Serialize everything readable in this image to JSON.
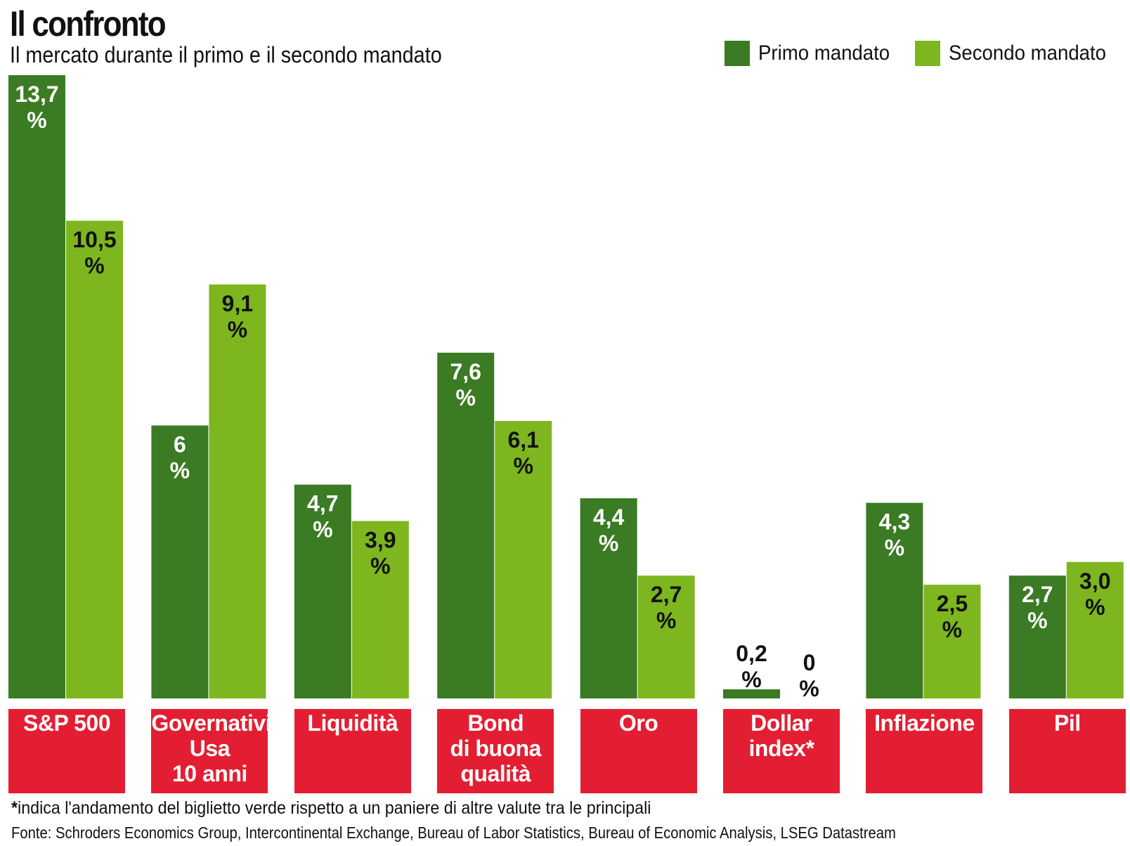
{
  "colors": {
    "primo": "#3a7b23",
    "secondo": "#7db61e",
    "category": "#e41e32"
  },
  "legend": [
    {
      "label": "Primo mandato",
      "color": "#3a7b23"
    },
    {
      "label": "Secondo mandato",
      "color": "#7db61e"
    }
  ],
  "footnote": {
    "star": "*",
    "text": "indica l'andamento del biglietto verde rispetto a un paniere di altre valute tra le principali"
  },
  "source": "Fonte: Schroders Economics Group, Intercontinental Exchange, Bureau of Labor Statistics, Bureau of Economic Analysis, LSEG Datastream",
  "chart_data": {
    "type": "bar",
    "title": "Il confronto",
    "subtitle": "Il mercato durante il primo e il secondo mandato",
    "categories": [
      "S&P 500",
      "Governativi\nUsa\n10 anni",
      "Liquidità",
      "Bond\ndi buona\nqualità",
      "Oro",
      "Dollar\nindex*",
      "Inflazione",
      "Pil"
    ],
    "series": [
      {
        "name": "Primo mandato",
        "values": [
          13.7,
          6,
          4.7,
          7.6,
          4.4,
          0.2,
          4.3,
          2.7
        ],
        "labels": [
          "13,7",
          "6",
          "4,7",
          "7,6",
          "4,4",
          "0,2",
          "4,3",
          "2,7"
        ]
      },
      {
        "name": "Secondo mandato",
        "values": [
          10.5,
          9.1,
          3.9,
          6.1,
          2.7,
          0,
          2.5,
          3.0
        ],
        "labels": [
          "10,5",
          "9,1",
          "3,9",
          "6,1",
          "2,7",
          "0",
          "2,5",
          "3,0"
        ]
      }
    ],
    "unit": "%",
    "ylim": [
      0,
      13.7
    ],
    "xlabel": "",
    "ylabel": "",
    "grid": false,
    "legend": "top-right"
  }
}
